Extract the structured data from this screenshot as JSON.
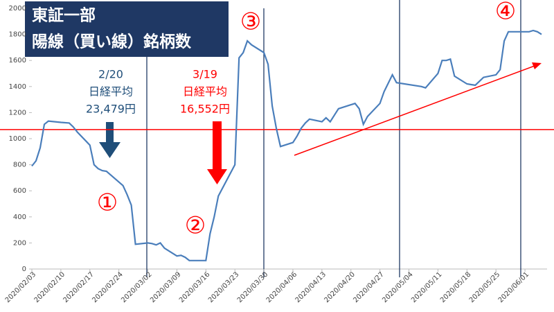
{
  "chart_data": {
    "type": "line",
    "title": "東証一部",
    "subtitle": "陽線（買い線）銘柄数",
    "annotations": [
      {
        "text": [
          "2/20",
          "日経平均",
          "23,479円"
        ],
        "color": "#1f4e79"
      },
      {
        "text": [
          "3/19",
          "日経平均",
          "16,552円"
        ],
        "color": "#ff0000"
      }
    ],
    "markers": [
      "①",
      "②",
      "③",
      "④"
    ],
    "x": [
      "2020/02/03",
      "2020/02/04",
      "2020/02/05",
      "2020/02/06",
      "2020/02/07",
      "2020/02/10",
      "2020/02/12",
      "2020/02/13",
      "2020/02/14",
      "2020/02/17",
      "2020/02/18",
      "2020/02/19",
      "2020/02/20",
      "2020/02/21",
      "2020/02/25",
      "2020/02/26",
      "2020/02/27",
      "2020/02/28",
      "2020/03/02",
      "2020/03/03",
      "2020/03/04",
      "2020/03/05",
      "2020/03/06",
      "2020/03/09",
      "2020/03/10",
      "2020/03/11",
      "2020/03/12",
      "2020/03/13",
      "2020/03/16",
      "2020/03/17",
      "2020/03/18",
      "2020/03/19",
      "2020/03/23",
      "2020/03/24",
      "2020/03/25",
      "2020/03/26",
      "2020/03/27",
      "2020/03/30",
      "2020/03/31",
      "2020/04/01",
      "2020/04/02",
      "2020/04/03",
      "2020/04/06",
      "2020/04/07",
      "2020/04/08",
      "2020/04/09",
      "2020/04/10",
      "2020/04/13",
      "2020/04/14",
      "2020/04/15",
      "2020/04/16",
      "2020/04/17",
      "2020/04/20",
      "2020/04/21",
      "2020/04/22",
      "2020/04/23",
      "2020/04/24",
      "2020/04/27",
      "2020/04/28",
      "2020/04/30",
      "2020/05/01",
      "2020/05/07",
      "2020/05/08",
      "2020/05/11",
      "2020/05/12",
      "2020/05/13",
      "2020/05/14",
      "2020/05/15",
      "2020/05/18",
      "2020/05/19",
      "2020/05/20",
      "2020/05/21",
      "2020/05/22",
      "2020/05/25",
      "2020/05/26",
      "2020/05/27",
      "2020/05/28",
      "2020/05/29",
      "2020/06/01",
      "2020/06/02",
      "2020/06/03",
      "2020/06/04",
      "2020/06/05"
    ],
    "series": [
      {
        "color": "#4a7ebb",
        "values": [
          790,
          830,
          930,
          1110,
          1135,
          1125,
          1120,
          1090,
          1050,
          950,
          800,
          770,
          755,
          750,
          640,
          570,
          490,
          190,
          200,
          195,
          185,
          200,
          160,
          100,
          105,
          90,
          65,
          65,
          65,
          270,
          400,
          560,
          800,
          1620,
          1660,
          1750,
          1720,
          1660,
          1570,
          1250,
          1080,
          940,
          970,
          1020,
          1080,
          1120,
          1150,
          1130,
          1160,
          1130,
          1180,
          1230,
          1260,
          1270,
          1230,
          1110,
          1170,
          1270,
          1360,
          1490,
          1430,
          1400,
          1390,
          1500,
          1600,
          1600,
          1610,
          1480,
          1420,
          1415,
          1410,
          1440,
          1470,
          1490,
          1530,
          1750,
          1820,
          1820,
          1820,
          1820,
          1830,
          1820,
          1800
        ]
      }
    ],
    "xlim": [
      "2020/02/03",
      "2020/06/05"
    ],
    "xticks": [
      "2020/02/03",
      "2020/02/10",
      "2020/02/17",
      "2020/02/24",
      "2020/03/02",
      "2020/03/09",
      "2020/03/16",
      "2020/03/23",
      "2020/03/30",
      "2020/04/06",
      "2020/04/13",
      "2020/04/20",
      "2020/04/27",
      "2020/05/04",
      "2020/05/11",
      "2020/05/18",
      "2020/05/25",
      "2020/06/01"
    ],
    "ylim": [
      0,
      2000
    ],
    "yticks": [
      0,
      200,
      400,
      600,
      800,
      1000,
      1200,
      1400,
      1600,
      1800,
      2000
    ],
    "hline": 1070,
    "hline_color": "#ff0000"
  }
}
